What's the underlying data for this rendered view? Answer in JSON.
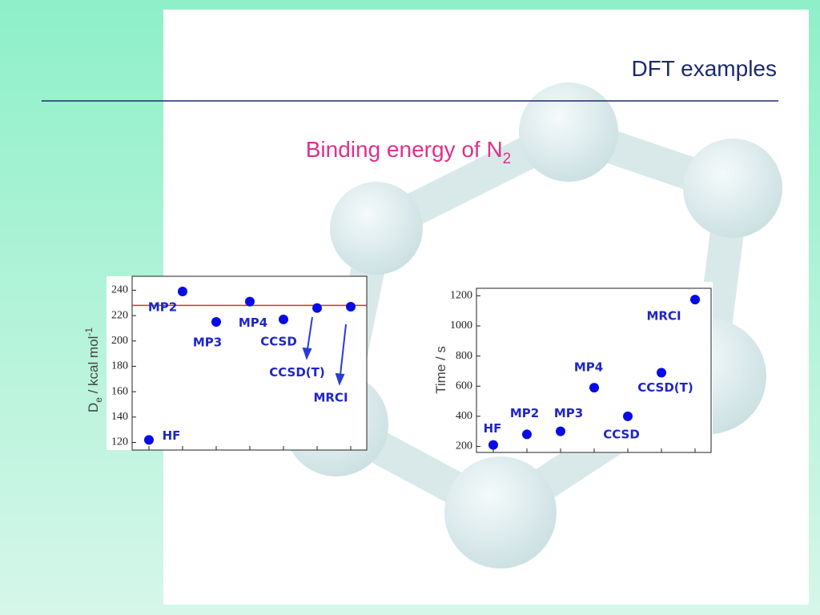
{
  "header": {
    "title": "DFT examples",
    "subtitle": {
      "text": "Binding energy of N",
      "subscript": "2"
    }
  },
  "chart_data": [
    {
      "type": "scatter",
      "ylabel_parts": [
        "D",
        "e",
        " / kcal mol",
        "-1"
      ],
      "categories": [
        "HF",
        "MP2",
        "MP3",
        "MP4",
        "CCSD",
        "CCSD(T)",
        "MRCI"
      ],
      "values": [
        122,
        239,
        215,
        231,
        217,
        226,
        227
      ],
      "color": "#0a0ae6",
      "reference": 228,
      "reference_color": "#e03020",
      "ylim": [
        114,
        251
      ],
      "yticks": [
        120,
        140,
        160,
        180,
        200,
        220,
        240
      ]
    },
    {
      "type": "scatter",
      "ylabel": "Time / s",
      "categories": [
        "HF",
        "MP2",
        "MP3",
        "MP4",
        "CCSD",
        "CCSD(T)",
        "MRCI"
      ],
      "values": [
        210,
        280,
        300,
        590,
        400,
        690,
        1175
      ],
      "color": "#0a0ae6",
      "ylim": [
        160,
        1250
      ],
      "yticks": [
        200,
        400,
        600,
        800,
        1000,
        1200
      ]
    }
  ]
}
